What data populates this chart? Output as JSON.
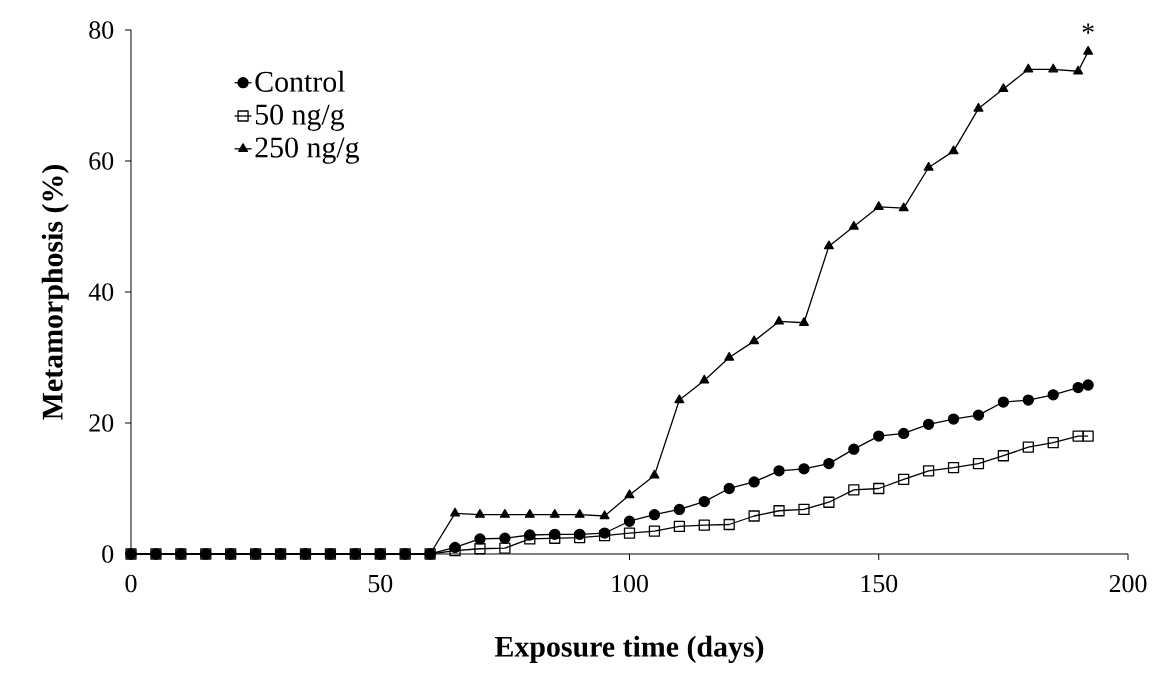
{
  "chart_data": {
    "type": "line",
    "xlabel": "Exposure time (days)",
    "ylabel": "Metamorphosis (%)",
    "x": [
      0,
      5,
      10,
      15,
      20,
      25,
      30,
      35,
      40,
      45,
      50,
      55,
      60,
      65,
      70,
      75,
      80,
      85,
      90,
      95,
      100,
      105,
      110,
      115,
      120,
      125,
      130,
      135,
      140,
      145,
      150,
      155,
      160,
      165,
      170,
      175,
      180,
      185,
      190,
      192
    ],
    "series": [
      {
        "name": "Control",
        "color": "#000000",
        "marker": "circle",
        "values": [
          0,
          0,
          0,
          0,
          0,
          0,
          0,
          0,
          0,
          0,
          0,
          0,
          0,
          1,
          2.3,
          2.4,
          2.9,
          3,
          3,
          3.2,
          5,
          6,
          6.8,
          8,
          10,
          11,
          12.7,
          13,
          13.8,
          16,
          18,
          18.4,
          19.8,
          20.6,
          21.2,
          23.2,
          23.5,
          24.3,
          25.4,
          25.8
        ]
      },
      {
        "name": "50 ng/g",
        "color": "#000000",
        "marker": "square",
        "values": [
          0,
          0,
          0,
          0,
          0,
          0,
          0,
          0,
          0,
          0,
          0,
          0,
          0,
          0.5,
          0.8,
          0.9,
          2.3,
          2.4,
          2.5,
          2.8,
          3.2,
          3.5,
          4.2,
          4.4,
          4.5,
          5.8,
          6.6,
          6.8,
          7.9,
          9.8,
          10,
          11.4,
          12.7,
          13.2,
          13.8,
          15,
          16.3,
          17,
          18,
          18
        ]
      },
      {
        "name": "250 ng/g",
        "color": "#000000",
        "marker": "triangle",
        "values": [
          0,
          0,
          0,
          0,
          0,
          0,
          0,
          0,
          0,
          0,
          0,
          0,
          0,
          6.2,
          6,
          6,
          6,
          6,
          6,
          5.8,
          9,
          12,
          23.5,
          26.5,
          30,
          32.5,
          35.5,
          35.3,
          47,
          50,
          53,
          52.8,
          59,
          61.5,
          68,
          71,
          74,
          74,
          73.7,
          76.7
        ]
      }
    ],
    "xlim": [
      0,
      200
    ],
    "xticks": [
      0,
      50,
      100,
      150,
      200
    ],
    "ylim": [
      0,
      80
    ],
    "yticks": [
      0,
      20,
      40,
      60,
      80
    ],
    "annotations": [
      {
        "text": "*",
        "x": 192,
        "y": 76.7
      }
    ],
    "legend": "top left",
    "grid": false,
    "line_style": "solid"
  }
}
